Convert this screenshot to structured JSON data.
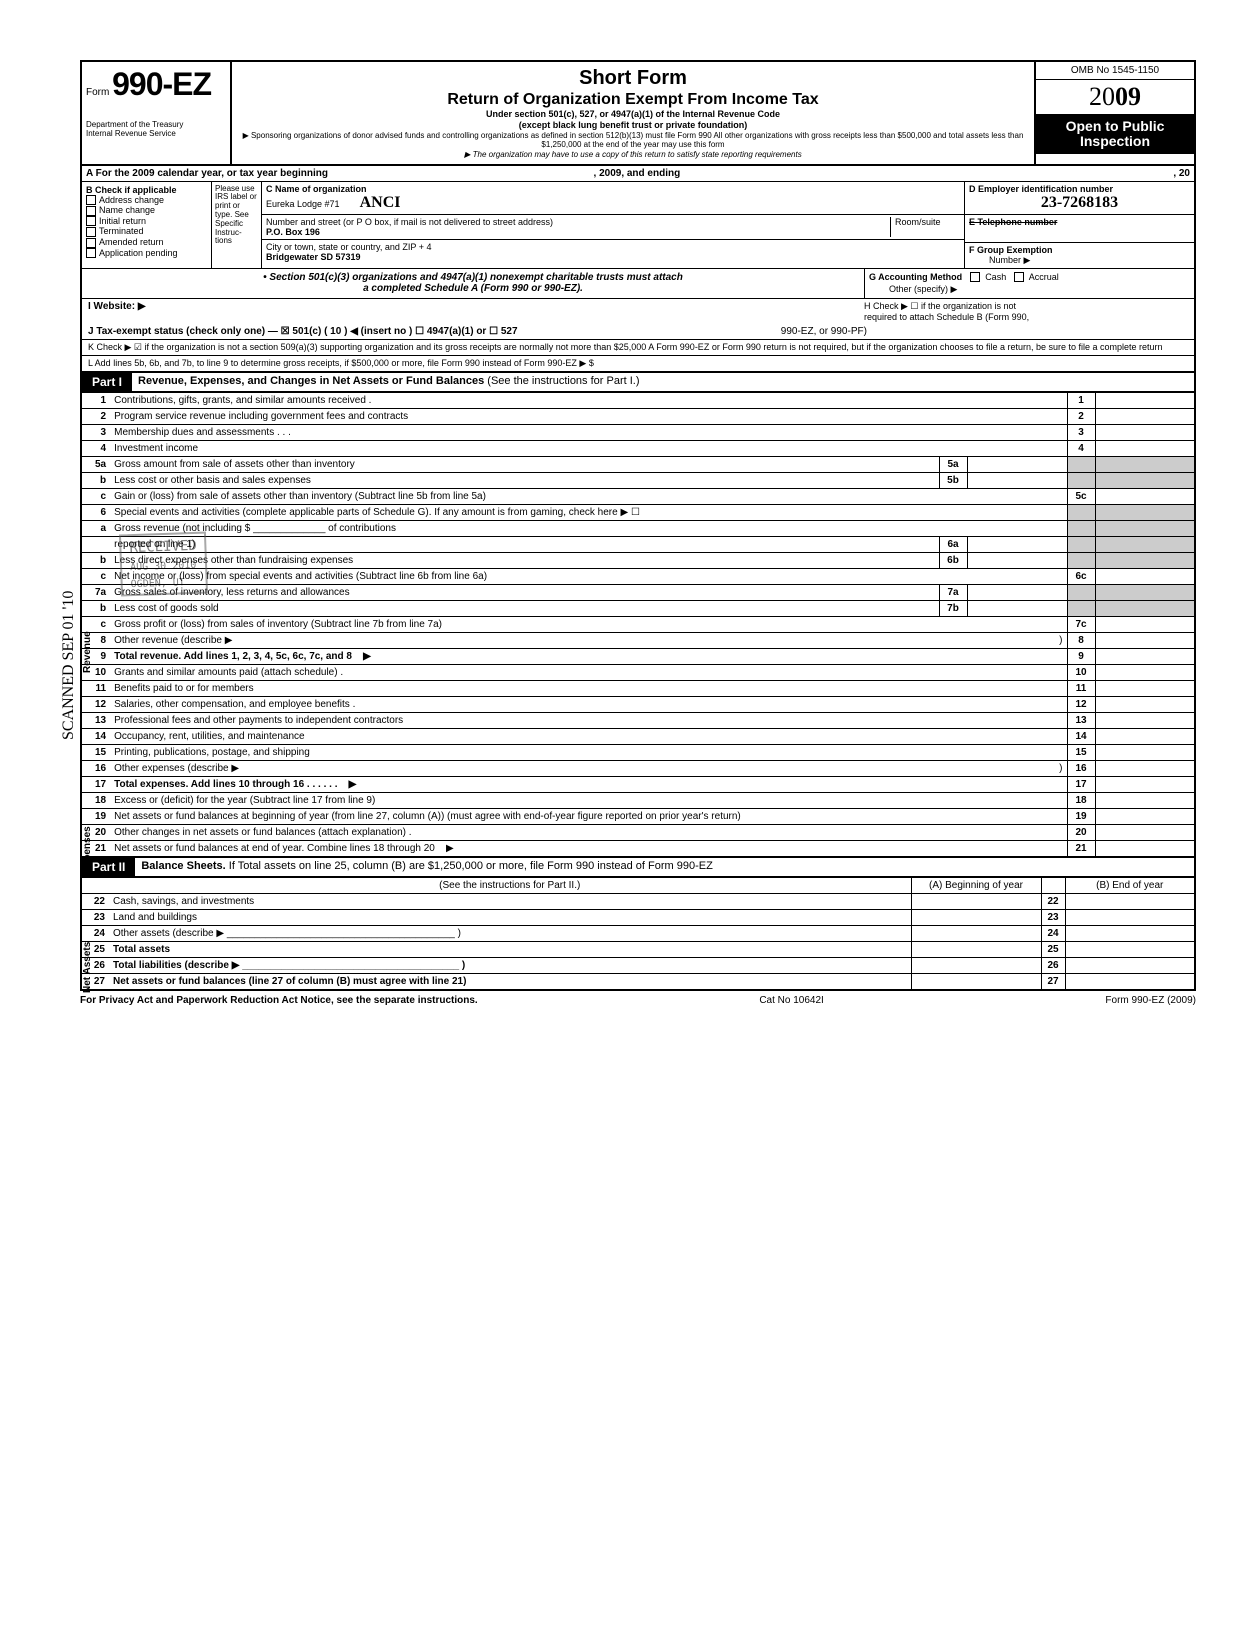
{
  "header": {
    "form_prefix": "Form",
    "form_number": "990-EZ",
    "dept1": "Department of the Treasury",
    "dept2": "Internal Revenue Service",
    "title1": "Short Form",
    "title2": "Return of Organization Exempt From Income Tax",
    "sub1": "Under section 501(c), 527, or 4947(a)(1) of the Internal Revenue Code",
    "sub2": "(except black lung benefit trust or private foundation)",
    "note1": "▶ Sponsoring organizations of donor advised funds and controlling organizations as defined in section 512(b)(13) must file Form 990  All other organizations with gross receipts less than $500,000 and total assets less than $1,250,000 at the end of the year may use this form",
    "note2": "▶ The organization may have to use a copy of this return to satisfy state reporting requirements",
    "omb": "OMB No 1545-1150",
    "year_plain": "20",
    "year_bold": "09",
    "open": "Open to Public Inspection"
  },
  "rowA": {
    "text": "A  For the 2009 calendar year, or tax year beginning",
    "mid": ", 2009, and ending",
    "end": ", 20"
  },
  "colB": {
    "head": "B  Check if applicable",
    "items": [
      "Address change",
      "Name change",
      "Initial return",
      "Terminated",
      "Amended return",
      "Application pending"
    ]
  },
  "colLabel": "Please use IRS label or print or type. See Specific Instruc-tions",
  "colC": {
    "name_lbl": "C  Name of organization",
    "name_val1": "Eureka Lodge #71",
    "name_val2": "ANCI",
    "addr_lbl": "Number and street (or P O  box, if mail is not delivered to street address)",
    "room_lbl": "Room/suite",
    "addr_val": "P.O. Box 196",
    "city_lbl": "City or town, state or country, and ZIP + 4",
    "city_val": "Bridgewater SD  57319"
  },
  "colD": {
    "ein_lbl": "D Employer identification number",
    "ein_val": "23-7268183",
    "tel_lbl": "E  Telephone number",
    "grp_lbl": "F  Group Exemption",
    "grp_sub": "Number  ▶"
  },
  "attach": {
    "left1": "• Section 501(c)(3) organizations and 4947(a)(1) nonexempt charitable trusts must attach",
    "left2": "a completed Schedule A (Form 990 or 990-EZ).",
    "g": "G  Accounting Method",
    "cash": "Cash",
    "accrual": "Accrual",
    "other": "Other (specify) ▶",
    "h1": "H  Check ▶ ☐ if the organization is not",
    "h2": "required to attach Schedule B (Form 990,",
    "h3": "990-EZ, or 990-PF)"
  },
  "secI": "I   Website: ▶",
  "secJ": "J  Tax-exempt status (check only one) —  ☒ 501(c) ( 10 )  ◀ (insert no )   ☐ 4947(a)(1) or    ☐ 527",
  "secK": "K  Check ▶  ☑   if the organization is not a section 509(a)(3) supporting organization and its gross receipts are normally not more than $25,000  A Form 990-EZ or Form 990 return is not required,  but if the organization chooses to file a return, be sure to file a complete return",
  "secL": "L  Add lines 5b, 6b, and 7b, to line 9 to determine gross receipts, if $500,000 or more, file Form 990 instead of Form 990-EZ     ▶    $",
  "part1": {
    "tag": "Part I",
    "title": "Revenue, Expenses, and Changes in Net Assets or Fund Balances ",
    "plain": "(See the instructions for Part I.)"
  },
  "lines": [
    {
      "n": "1",
      "d": "Contributions, gifts, grants, and similar amounts received .",
      "r": "1"
    },
    {
      "n": "2",
      "d": "Program service revenue including government fees and contracts",
      "r": "2"
    },
    {
      "n": "3",
      "d": "Membership dues and assessments .   .   .",
      "r": "3"
    },
    {
      "n": "4",
      "d": "Investment income",
      "r": "4"
    },
    {
      "n": "5a",
      "d": "Gross amount from sale of assets other than inventory",
      "m": "5a"
    },
    {
      "n": "b",
      "d": "Less  cost or other basis and sales expenses",
      "m": "5b"
    },
    {
      "n": "c",
      "d": "Gain or (loss) from sale of assets other than inventory (Subtract line 5b from line 5a)",
      "r": "5c"
    },
    {
      "n": "6",
      "d": "Special events and activities (complete applicable parts of Schedule G). If any amount is from gaming, check here ▶ ☐"
    },
    {
      "n": "a",
      "d": "Gross revenue (not including $ _____________ of contributions"
    },
    {
      "n": "",
      "d": "reported on line 1)",
      "m": "6a"
    },
    {
      "n": "b",
      "d": "Less  direct expenses other than fundraising expenses",
      "m": "6b"
    },
    {
      "n": "c",
      "d": "Net income or (loss) from special events and activities (Subtract line 6b from line 6a)",
      "r": "6c"
    },
    {
      "n": "7a",
      "d": "Gross sales of inventory, less returns and allowances",
      "m": "7a"
    },
    {
      "n": "b",
      "d": "Less cost of goods sold",
      "m": "7b"
    },
    {
      "n": "c",
      "d": "Gross profit or (loss) from sales of inventory (Subtract line 7b from line 7a)",
      "r": "7c"
    },
    {
      "n": "8",
      "d": "Other revenue (describe ▶",
      "r": "8",
      "paren": ")"
    },
    {
      "n": "9",
      "d": "Total revenue. Add lines 1, 2, 3, 4, 5c, 6c, 7c, and 8",
      "r": "9",
      "bold": true,
      "arrow": "▶"
    },
    {
      "n": "10",
      "d": "Grants and similar amounts paid (attach schedule) .",
      "r": "10"
    },
    {
      "n": "11",
      "d": "Benefits paid to or for members",
      "r": "11"
    },
    {
      "n": "12",
      "d": "Salaries, other compensation, and employee benefits .",
      "r": "12"
    },
    {
      "n": "13",
      "d": "Professional fees and other payments to independent contractors",
      "r": "13"
    },
    {
      "n": "14",
      "d": "Occupancy, rent, utilities, and maintenance",
      "r": "14"
    },
    {
      "n": "15",
      "d": "Printing, publications, postage, and shipping",
      "r": "15"
    },
    {
      "n": "16",
      "d": "Other expenses (describe ▶",
      "r": "16",
      "paren": ")"
    },
    {
      "n": "17",
      "d": "Total expenses. Add lines 10 through 16  .   .   .   .   .   .",
      "r": "17",
      "bold": true,
      "arrow": "▶"
    },
    {
      "n": "18",
      "d": "Excess or (deficit) for the year (Subtract line 17 from line 9)",
      "r": "18"
    },
    {
      "n": "19",
      "d": "Net assets or fund balances at beginning of year (from line 27, column (A)) (must agree with end-of-year figure reported on prior year's return)",
      "r": "19"
    },
    {
      "n": "20",
      "d": "Other changes in net assets or fund balances (attach explanation) .",
      "r": "20"
    },
    {
      "n": "21",
      "d": "Net assets or fund balances at end of year. Combine lines 18 through 20",
      "r": "21",
      "arrow": "▶"
    }
  ],
  "vlabels": {
    "rev": "Revenue",
    "exp": "Expenses",
    "na": "Net Assets"
  },
  "part2": {
    "tag": "Part II",
    "title": "Balance Sheets. ",
    "plain": "If Total assets on line 25, column (B) are $1,250,000 or more, file Form 990 instead of Form 990-EZ",
    "instr": "(See the instructions for Part II.)",
    "colA": "(A) Beginning of year",
    "colB": "(B) End of year"
  },
  "bs": [
    {
      "n": "22",
      "d": "Cash, savings, and investments",
      "r": "22"
    },
    {
      "n": "23",
      "d": "Land and buildings",
      "r": "23"
    },
    {
      "n": "24",
      "d": "Other assets (describe ▶  _________________________________________ )",
      "r": "24"
    },
    {
      "n": "25",
      "d": "Total assets",
      "r": "25",
      "bold": true
    },
    {
      "n": "26",
      "d": "Total liabilities (describe ▶ _______________________________________ )",
      "r": "26",
      "bold": true
    },
    {
      "n": "27",
      "d": "Net assets or fund balances (line 27 of column (B) must agree with line 21)",
      "r": "27",
      "bold": true
    }
  ],
  "footer": {
    "l": "For Privacy Act and Paperwork Reduction Act Notice, see the separate instructions.",
    "m": "Cat  No  10642I",
    "r": "Form 990-EZ (2009)"
  },
  "stamps": {
    "received": "RECEIVED",
    "date": "AUG 30 2010",
    "ogden": "OGDEN, UT",
    "scanned": "SCANNED SEP 01 '10"
  }
}
